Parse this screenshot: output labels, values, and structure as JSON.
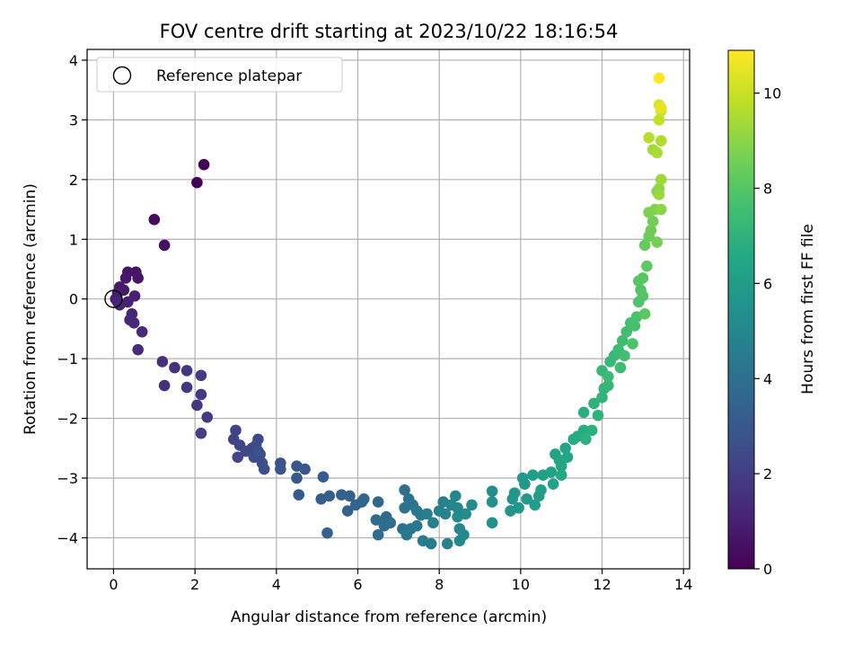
{
  "chart_data": {
    "type": "scatter",
    "title": "FOV centre drift starting at 2023/10/22 18:16:54",
    "xlabel": "Angular distance from reference (arcmin)",
    "ylabel": "Rotation from reference (arcmin)",
    "xlim": [
      -0.65,
      14.15
    ],
    "ylim": [
      -4.52,
      4.18
    ],
    "xticks": [
      0,
      2,
      4,
      6,
      8,
      10,
      12,
      14
    ],
    "yticks": [
      -4,
      -3,
      -2,
      -1,
      0,
      1,
      2,
      3,
      4
    ],
    "xtick_labels": [
      "0",
      "2",
      "4",
      "6",
      "8",
      "10",
      "12",
      "14"
    ],
    "ytick_labels": [
      "−4",
      "−3",
      "−2",
      "−1",
      "0",
      "1",
      "2",
      "3",
      "4"
    ],
    "grid": true,
    "legend": {
      "placement": "top-left",
      "entries": [
        "Reference platepar"
      ]
    },
    "reference_point": {
      "x": 0,
      "y": 0
    },
    "colorbar": {
      "label": "Hours from first FF file",
      "colormap": "viridis",
      "range": [
        0,
        10.9
      ],
      "ticks": [
        0,
        2,
        4,
        6,
        8,
        10
      ],
      "tick_labels": [
        "0",
        "2",
        "4",
        "6",
        "8",
        "10"
      ]
    },
    "points": [
      [
        2.22,
        2.25,
        0.05
      ],
      [
        2.05,
        1.95,
        0.12
      ],
      [
        1.0,
        1.33,
        0.3
      ],
      [
        1.25,
        0.9,
        0.45
      ],
      [
        0.35,
        0.45,
        0.55
      ],
      [
        0.55,
        0.45,
        0.6
      ],
      [
        0.6,
        0.35,
        0.65
      ],
      [
        0.3,
        0.35,
        0.7
      ],
      [
        0.15,
        0.2,
        0.75
      ],
      [
        0.25,
        0.15,
        0.8
      ],
      [
        0.1,
        0.1,
        0.85
      ],
      [
        0.05,
        0.0,
        0.9
      ],
      [
        0.52,
        0.05,
        0.95
      ],
      [
        0.35,
        -0.05,
        1.0
      ],
      [
        0.15,
        -0.1,
        1.05
      ],
      [
        0.1,
        -0.05,
        1.1
      ],
      [
        0.45,
        -0.25,
        1.15
      ],
      [
        0.4,
        -0.35,
        1.2
      ],
      [
        0.5,
        -0.4,
        1.25
      ],
      [
        0.7,
        -0.55,
        1.3
      ],
      [
        0.6,
        -0.85,
        1.35
      ],
      [
        1.2,
        -1.05,
        1.45
      ],
      [
        1.25,
        -1.45,
        1.5
      ],
      [
        1.5,
        -1.15,
        1.6
      ],
      [
        1.8,
        -1.2,
        1.7
      ],
      [
        1.8,
        -1.48,
        1.75
      ],
      [
        2.05,
        -1.78,
        1.8
      ],
      [
        2.15,
        -1.6,
        1.85
      ],
      [
        2.15,
        -1.28,
        1.9
      ],
      [
        2.3,
        -1.98,
        1.95
      ],
      [
        2.15,
        -2.25,
        2.0
      ],
      [
        3.0,
        -2.2,
        2.1
      ],
      [
        2.95,
        -2.35,
        2.15
      ],
      [
        3.1,
        -2.45,
        2.2
      ],
      [
        3.05,
        -2.65,
        2.25
      ],
      [
        3.25,
        -2.55,
        2.3
      ],
      [
        3.4,
        -2.5,
        2.35
      ],
      [
        3.55,
        -2.35,
        2.4
      ],
      [
        3.5,
        -2.45,
        2.45
      ],
      [
        3.6,
        -2.6,
        2.5
      ],
      [
        3.65,
        -2.75,
        2.55
      ],
      [
        3.45,
        -2.65,
        2.6
      ],
      [
        3.7,
        -2.85,
        2.65
      ],
      [
        3.55,
        -2.55,
        2.7
      ],
      [
        4.1,
        -2.75,
        2.8
      ],
      [
        4.1,
        -2.85,
        2.85
      ],
      [
        4.5,
        -2.8,
        2.9
      ],
      [
        4.7,
        -2.85,
        2.95
      ],
      [
        4.5,
        -3.0,
        3.0
      ],
      [
        4.55,
        -3.28,
        3.05
      ],
      [
        5.15,
        -2.98,
        3.15
      ],
      [
        5.1,
        -3.35,
        3.2
      ],
      [
        5.3,
        -3.3,
        3.25
      ],
      [
        5.6,
        -3.28,
        3.3
      ],
      [
        5.8,
        -3.3,
        3.35
      ],
      [
        5.25,
        -3.92,
        3.4
      ],
      [
        5.75,
        -3.55,
        3.45
      ],
      [
        5.95,
        -3.45,
        3.5
      ],
      [
        6.1,
        -3.4,
        3.55
      ],
      [
        6.15,
        -3.35,
        3.6
      ],
      [
        6.5,
        -3.4,
        3.7
      ],
      [
        6.45,
        -3.7,
        3.75
      ],
      [
        6.7,
        -3.65,
        3.8
      ],
      [
        6.65,
        -3.8,
        3.85
      ],
      [
        6.5,
        -3.95,
        3.9
      ],
      [
        6.8,
        -3.75,
        3.95
      ],
      [
        7.15,
        -3.2,
        4.0
      ],
      [
        7.25,
        -3.35,
        4.05
      ],
      [
        7.35,
        -3.45,
        4.1
      ],
      [
        7.15,
        -3.5,
        4.15
      ],
      [
        7.1,
        -3.85,
        4.2
      ],
      [
        7.3,
        -3.85,
        4.25
      ],
      [
        7.45,
        -3.8,
        4.3
      ],
      [
        7.2,
        -3.95,
        4.35
      ],
      [
        7.45,
        -3.55,
        4.4
      ],
      [
        7.55,
        -3.62,
        4.45
      ],
      [
        7.6,
        -4.05,
        4.5
      ],
      [
        7.8,
        -4.1,
        4.55
      ],
      [
        7.7,
        -3.6,
        4.6
      ],
      [
        7.85,
        -3.75,
        4.65
      ],
      [
        8.0,
        -3.55,
        4.7
      ],
      [
        8.1,
        -3.4,
        4.75
      ],
      [
        8.15,
        -3.6,
        4.8
      ],
      [
        8.2,
        -4.1,
        4.85
      ],
      [
        8.3,
        -3.45,
        4.9
      ],
      [
        8.4,
        -3.3,
        4.95
      ],
      [
        8.45,
        -3.5,
        5.0
      ],
      [
        8.5,
        -3.85,
        5.05
      ],
      [
        8.5,
        -4.05,
        5.1
      ],
      [
        8.6,
        -3.95,
        5.15
      ],
      [
        8.45,
        -3.65,
        5.2
      ],
      [
        8.65,
        -3.6,
        5.25
      ],
      [
        8.8,
        -3.45,
        5.3
      ],
      [
        9.3,
        -3.22,
        5.4
      ],
      [
        9.3,
        -3.4,
        5.45
      ],
      [
        9.3,
        -3.75,
        5.5
      ],
      [
        9.75,
        -3.55,
        5.6
      ],
      [
        9.8,
        -3.35,
        5.65
      ],
      [
        9.85,
        -3.25,
        5.7
      ],
      [
        9.95,
        -3.5,
        5.75
      ],
      [
        10.05,
        -3.0,
        5.8
      ],
      [
        10.1,
        -3.1,
        5.85
      ],
      [
        10.15,
        -3.35,
        5.9
      ],
      [
        10.3,
        -2.95,
        5.95
      ],
      [
        10.35,
        -3.45,
        6.0
      ],
      [
        10.45,
        -3.3,
        6.05
      ],
      [
        10.5,
        -3.2,
        6.1
      ],
      [
        10.55,
        -2.95,
        6.15
      ],
      [
        10.75,
        -2.9,
        6.2
      ],
      [
        10.8,
        -3.1,
        6.25
      ],
      [
        10.85,
        -2.6,
        6.3
      ],
      [
        10.95,
        -2.7,
        6.35
      ],
      [
        11.0,
        -2.8,
        6.4
      ],
      [
        11.1,
        -2.5,
        6.45
      ],
      [
        11.15,
        -2.65,
        6.5
      ],
      [
        11.0,
        -2.95,
        6.55
      ],
      [
        11.3,
        -2.35,
        6.65
      ],
      [
        11.4,
        -2.3,
        6.7
      ],
      [
        11.55,
        -2.2,
        6.75
      ],
      [
        11.55,
        -1.9,
        6.8
      ],
      [
        11.75,
        -2.2,
        6.85
      ],
      [
        11.6,
        -2.35,
        6.9
      ],
      [
        11.8,
        -1.75,
        6.95
      ],
      [
        11.9,
        -1.95,
        7.0
      ],
      [
        12.0,
        -1.65,
        7.05
      ],
      [
        12.05,
        -1.5,
        7.1
      ],
      [
        12.15,
        -1.45,
        7.15
      ],
      [
        12.0,
        -1.2,
        7.2
      ],
      [
        12.2,
        -1.05,
        7.25
      ],
      [
        12.3,
        -0.95,
        7.3
      ],
      [
        12.15,
        -1.3,
        7.35
      ],
      [
        12.4,
        -0.85,
        7.4
      ],
      [
        12.45,
        -1.15,
        7.45
      ],
      [
        12.5,
        -0.7,
        7.5
      ],
      [
        12.55,
        -0.95,
        7.55
      ],
      [
        12.6,
        -0.55,
        7.6
      ],
      [
        12.7,
        -0.4,
        7.65
      ],
      [
        12.8,
        -0.45,
        7.7
      ],
      [
        12.85,
        -0.3,
        7.75
      ],
      [
        12.75,
        -0.75,
        7.8
      ],
      [
        12.9,
        -0.05,
        7.85
      ],
      [
        12.95,
        0.15,
        7.9
      ],
      [
        13.0,
        0.05,
        7.95
      ],
      [
        12.9,
        0.3,
        8.0
      ],
      [
        13.0,
        0.35,
        8.05
      ],
      [
        13.05,
        -0.25,
        8.1
      ],
      [
        13.1,
        0.55,
        8.2
      ],
      [
        13.05,
        0.9,
        8.3
      ],
      [
        13.15,
        1.05,
        8.4
      ],
      [
        13.2,
        1.15,
        8.5
      ],
      [
        13.25,
        1.3,
        8.55
      ],
      [
        13.35,
        0.95,
        8.6
      ],
      [
        13.15,
        1.45,
        8.7
      ],
      [
        13.3,
        1.5,
        8.8
      ],
      [
        13.35,
        1.8,
        8.9
      ],
      [
        13.45,
        1.5,
        9.0
      ],
      [
        13.4,
        1.85,
        9.1
      ],
      [
        13.4,
        1.75,
        9.2
      ],
      [
        13.45,
        2.0,
        9.3
      ],
      [
        13.25,
        2.5,
        9.4
      ],
      [
        13.35,
        2.45,
        9.5
      ],
      [
        13.45,
        2.65,
        9.6
      ],
      [
        13.15,
        2.7,
        9.7
      ],
      [
        13.4,
        3.0,
        9.9
      ],
      [
        13.45,
        3.15,
        10.1
      ],
      [
        13.4,
        3.25,
        10.3
      ],
      [
        13.45,
        3.2,
        10.5
      ],
      [
        13.4,
        3.7,
        10.9
      ]
    ]
  }
}
